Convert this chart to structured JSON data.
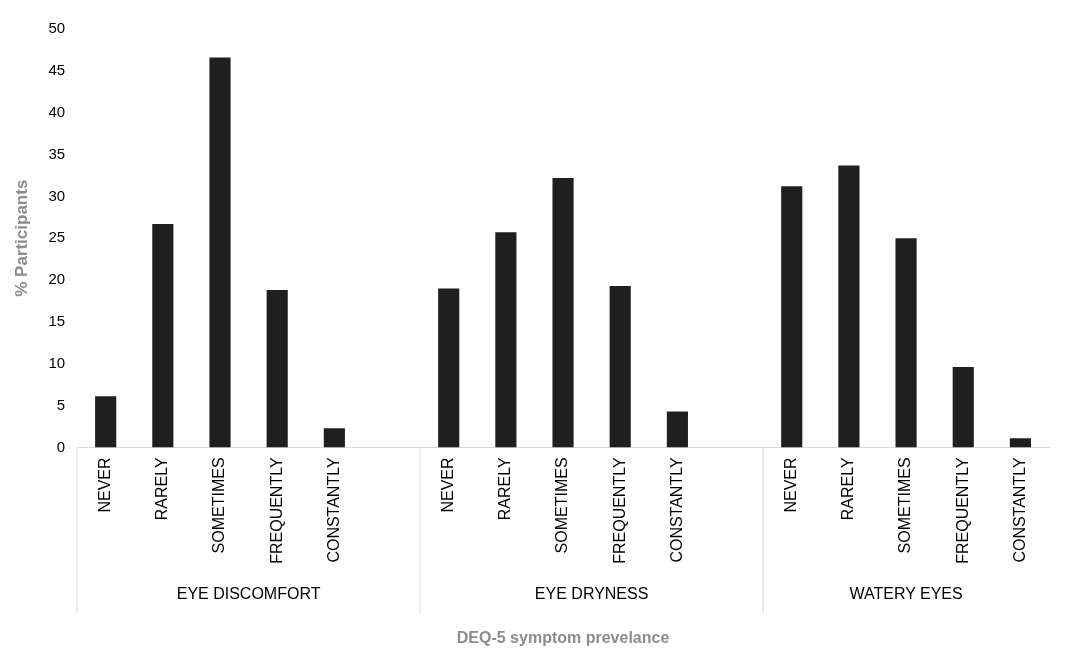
{
  "chart_data": {
    "type": "bar",
    "xlabel": "DEQ-5 symptom prevelance",
    "ylabel": "% Participants",
    "categories": [
      "NEVER",
      "RARELY",
      "SOMETIMES",
      "FREQUENTLY",
      "CONSTANTLY",
      null,
      "NEVER",
      "RARELY",
      "SOMETIMES",
      "FREQUENTLY",
      "CONSTANTLY",
      null,
      "NEVER",
      "RARELY",
      "SOMETIMES",
      "FREQUENTLY",
      "CONSTANTLY"
    ],
    "values": [
      6.1,
      26.7,
      46.6,
      18.8,
      2.3,
      null,
      19.0,
      25.7,
      32.2,
      19.3,
      4.3,
      null,
      31.2,
      33.7,
      25.0,
      9.6,
      1.1
    ],
    "color": "#1f1f1f",
    "ylim": [
      0,
      50
    ],
    "yticks": [
      0,
      5,
      10,
      15,
      20,
      25,
      30,
      35,
      40,
      45,
      50
    ],
    "grid": false,
    "legend": false,
    "annotations": [
      "EYE DISCOMFORT",
      "EYE DRYNESS",
      "WATERY EYES"
    ]
  }
}
